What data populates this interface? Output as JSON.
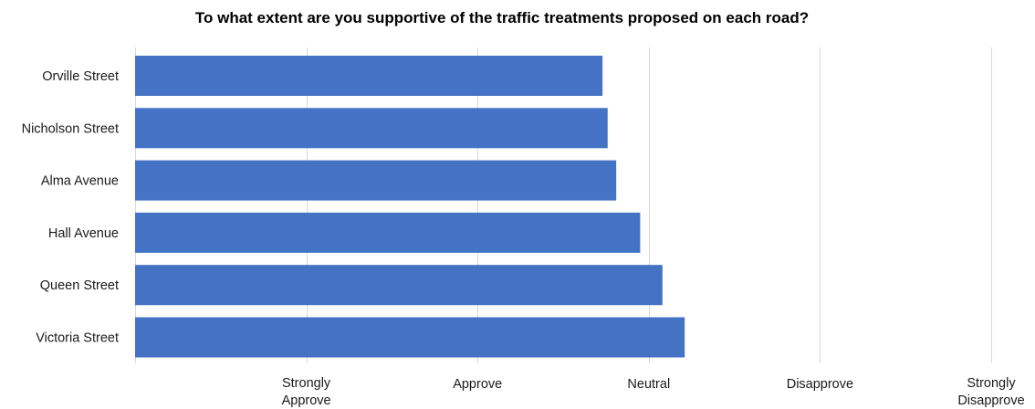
{
  "chart_data": {
    "type": "bar",
    "orientation": "horizontal",
    "title": "To what extent are you supportive of the traffic treatments proposed on each road?",
    "categories": [
      "Orville Street",
      "Nicholson Street",
      "Alma Avenue",
      "Hall Avenue",
      "Queen Street",
      "Victoria Street"
    ],
    "values": [
      2.73,
      2.76,
      2.81,
      2.95,
      3.08,
      3.21
    ],
    "xlim": [
      0,
      5
    ],
    "x_ticks": [
      {
        "value": 1,
        "lines": [
          "Strongly",
          "Approve"
        ]
      },
      {
        "value": 2,
        "lines": [
          "Approve"
        ]
      },
      {
        "value": 3,
        "lines": [
          "Neutral"
        ]
      },
      {
        "value": 4,
        "lines": [
          "Disapprove"
        ]
      },
      {
        "value": 5,
        "lines": [
          "Strongly",
          "Disapprove"
        ]
      }
    ],
    "grid": true,
    "legend": "none",
    "bar_color": "#4472c4",
    "grid_color": "#d9d9d9"
  }
}
